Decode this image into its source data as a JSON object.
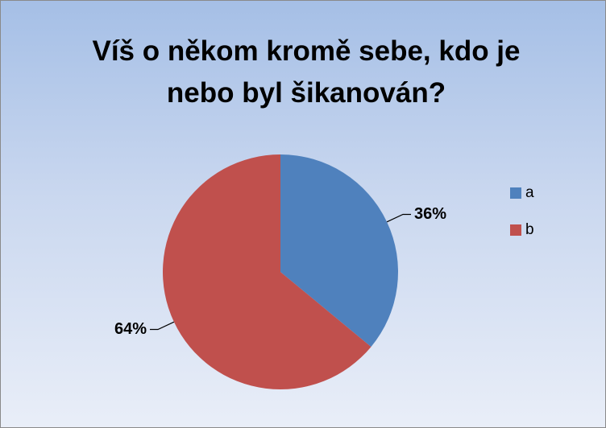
{
  "chart_data": {
    "type": "pie",
    "title": "Víš o někom kromě sebe, kdo je nebo byl šikanován?",
    "categories": [
      "a",
      "b"
    ],
    "values": [
      36,
      64
    ],
    "value_labels": [
      "36%",
      "64%"
    ],
    "colors": [
      "#4f81bd",
      "#c0504d"
    ],
    "legend": "right"
  }
}
